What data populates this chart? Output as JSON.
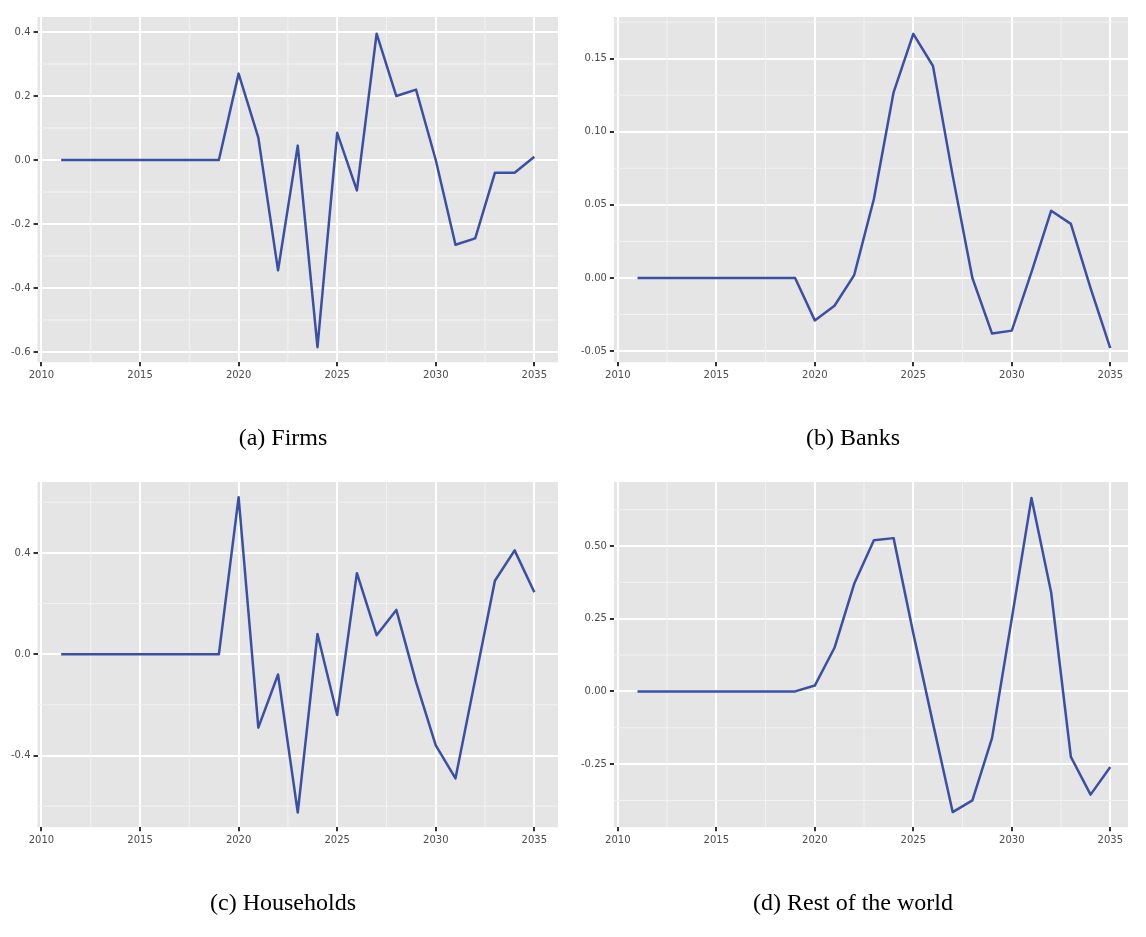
{
  "chart_data": [
    {
      "type": "line",
      "title": "(a) Firms",
      "x": [
        2011,
        2012,
        2013,
        2014,
        2015,
        2016,
        2017,
        2018,
        2019,
        2020,
        2021,
        2022,
        2023,
        2024,
        2025,
        2026,
        2027,
        2028,
        2029,
        2030,
        2031,
        2032,
        2033,
        2034,
        2035
      ],
      "series": [
        {
          "color": "#3b50a5",
          "values": [
            0,
            0,
            0,
            0,
            0,
            0,
            0,
            0,
            0,
            0.27,
            0.07,
            -0.345,
            0.045,
            -0.585,
            0.085,
            -0.095,
            0.395,
            0.2,
            0.22,
            0.0,
            -0.265,
            -0.245,
            -0.04,
            -0.04,
            0.01
          ]
        }
      ],
      "xlim": [
        2009.8,
        2036.2
      ],
      "xticks": [
        2010,
        2015,
        2020,
        2025,
        2030,
        2035
      ],
      "ylim": [
        -0.632,
        0.447
      ],
      "yticks": [
        {
          "value": -0.6,
          "label": "-0.6"
        },
        {
          "value": -0.4,
          "label": "-0.4"
        },
        {
          "value": -0.2,
          "label": "-0.2"
        },
        {
          "value": 0,
          "label": "0.0"
        },
        {
          "value": 0.2,
          "label": "0.2"
        },
        {
          "value": 0.4,
          "label": "0.4"
        }
      ],
      "grid": true,
      "legend": false,
      "marker": "none",
      "line_style": "solid"
    },
    {
      "type": "line",
      "title": "(b) Banks",
      "x": [
        2011,
        2012,
        2013,
        2014,
        2015,
        2016,
        2017,
        2018,
        2019,
        2020,
        2021,
        2022,
        2023,
        2024,
        2025,
        2026,
        2027,
        2028,
        2029,
        2030,
        2031,
        2032,
        2033,
        2034,
        2035
      ],
      "series": [
        {
          "color": "#3b50a5",
          "values": [
            0,
            0,
            0,
            0,
            0,
            0,
            0,
            0,
            0,
            -0.029,
            -0.019,
            0.002,
            0.054,
            0.127,
            0.167,
            0.145,
            0.07,
            0.0,
            -0.038,
            -0.036,
            0.004,
            0.046,
            0.037,
            -0.007,
            -0.048
          ]
        }
      ],
      "xlim": [
        2009.8,
        2035.9
      ],
      "xticks": [
        2010,
        2015,
        2020,
        2025,
        2030,
        2035
      ],
      "ylim": [
        -0.0576,
        0.1785
      ],
      "yticks": [
        {
          "value": -0.05,
          "label": "-0.05"
        },
        {
          "value": 0,
          "label": "0.00"
        },
        {
          "value": 0.05,
          "label": "0.05"
        },
        {
          "value": 0.1,
          "label": "0.10"
        },
        {
          "value": 0.15,
          "label": "0.15"
        }
      ],
      "grid": true,
      "legend": false,
      "marker": "none",
      "line_style": "solid"
    },
    {
      "type": "line",
      "title": "(c) Households",
      "x": [
        2011,
        2012,
        2013,
        2014,
        2015,
        2016,
        2017,
        2018,
        2019,
        2020,
        2021,
        2022,
        2023,
        2024,
        2025,
        2026,
        2027,
        2028,
        2029,
        2030,
        2031,
        2032,
        2033,
        2034,
        2035
      ],
      "series": [
        {
          "color": "#3b50a5",
          "values": [
            0,
            0,
            0,
            0,
            0,
            0,
            0,
            0,
            0,
            0.62,
            -0.29,
            -0.08,
            -0.625,
            0.08,
            -0.24,
            0.32,
            0.075,
            0.175,
            -0.11,
            -0.36,
            -0.49,
            -0.1,
            0.29,
            0.41,
            0.245
          ]
        }
      ],
      "xlim": [
        2009.8,
        2036.2
      ],
      "xticks": [
        2010,
        2015,
        2020,
        2025,
        2030,
        2035
      ],
      "ylim": [
        -0.683,
        0.68
      ],
      "yticks": [
        {
          "value": -0.4,
          "label": "-0.4"
        },
        {
          "value": 0,
          "label": "0.0"
        },
        {
          "value": 0.4,
          "label": "0.4"
        }
      ],
      "grid": true,
      "legend": false,
      "marker": "none",
      "line_style": "solid"
    },
    {
      "type": "line",
      "title": "(d) Rest of the world",
      "x": [
        2011,
        2012,
        2013,
        2014,
        2015,
        2016,
        2017,
        2018,
        2019,
        2020,
        2021,
        2022,
        2023,
        2024,
        2025,
        2026,
        2027,
        2028,
        2029,
        2030,
        2031,
        2032,
        2033,
        2034,
        2035
      ],
      "series": [
        {
          "color": "#3b50a5",
          "values": [
            0,
            0,
            0,
            0,
            0,
            0,
            0,
            0,
            0,
            0.02,
            0.15,
            0.37,
            0.52,
            0.527,
            0.2,
            -0.11,
            -0.415,
            -0.375,
            -0.16,
            0.25,
            0.665,
            0.34,
            -0.225,
            -0.355,
            -0.26
          ]
        }
      ],
      "xlim": [
        2009.8,
        2035.9
      ],
      "xticks": [
        2010,
        2015,
        2020,
        2025,
        2030,
        2035
      ],
      "ylim": [
        -0.467,
        0.72
      ],
      "yticks": [
        {
          "value": -0.25,
          "label": "-0.25"
        },
        {
          "value": 0,
          "label": "0.00"
        },
        {
          "value": 0.25,
          "label": "0.25"
        },
        {
          "value": 0.5,
          "label": "0.50"
        }
      ],
      "grid": true,
      "legend": false,
      "marker": "none",
      "line_style": "solid"
    }
  ]
}
